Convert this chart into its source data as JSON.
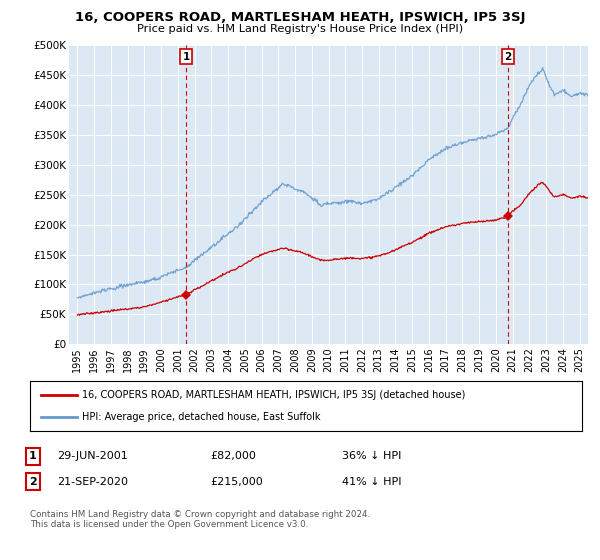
{
  "title": "16, COOPERS ROAD, MARTLESHAM HEATH, IPSWICH, IP5 3SJ",
  "subtitle": "Price paid vs. HM Land Registry's House Price Index (HPI)",
  "ylabel_ticks": [
    "£0",
    "£50K",
    "£100K",
    "£150K",
    "£200K",
    "£250K",
    "£300K",
    "£350K",
    "£400K",
    "£450K",
    "£500K"
  ],
  "ytick_vals": [
    0,
    50000,
    100000,
    150000,
    200000,
    250000,
    300000,
    350000,
    400000,
    450000,
    500000
  ],
  "ylim": [
    0,
    500000
  ],
  "xlim_start": 1994.5,
  "xlim_end": 2025.5,
  "hpi_color": "#6699cc",
  "price_color": "#cc0000",
  "marker1_date": 2001.49,
  "marker1_price": 82000,
  "marker1_label": "29-JUN-2001",
  "marker1_amount": "£82,000",
  "marker1_pct": "36% ↓ HPI",
  "marker2_date": 2020.72,
  "marker2_price": 215000,
  "marker2_label": "21-SEP-2020",
  "marker2_amount": "£215,000",
  "marker2_pct": "41% ↓ HPI",
  "legend_line1": "16, COOPERS ROAD, MARTLESHAM HEATH, IPSWICH, IP5 3SJ (detached house)",
  "legend_line2": "HPI: Average price, detached house, East Suffolk",
  "footnote": "Contains HM Land Registry data © Crown copyright and database right 2024.\nThis data is licensed under the Open Government Licence v3.0.",
  "bg_color": "#ffffff",
  "plot_bg_color": "#dce9f5",
  "grid_color": "#ffffff",
  "xtick_years": [
    1995,
    1996,
    1997,
    1998,
    1999,
    2000,
    2001,
    2002,
    2003,
    2004,
    2005,
    2006,
    2007,
    2008,
    2009,
    2010,
    2011,
    2012,
    2013,
    2014,
    2015,
    2016,
    2017,
    2018,
    2019,
    2020,
    2021,
    2022,
    2023,
    2024,
    2025
  ]
}
